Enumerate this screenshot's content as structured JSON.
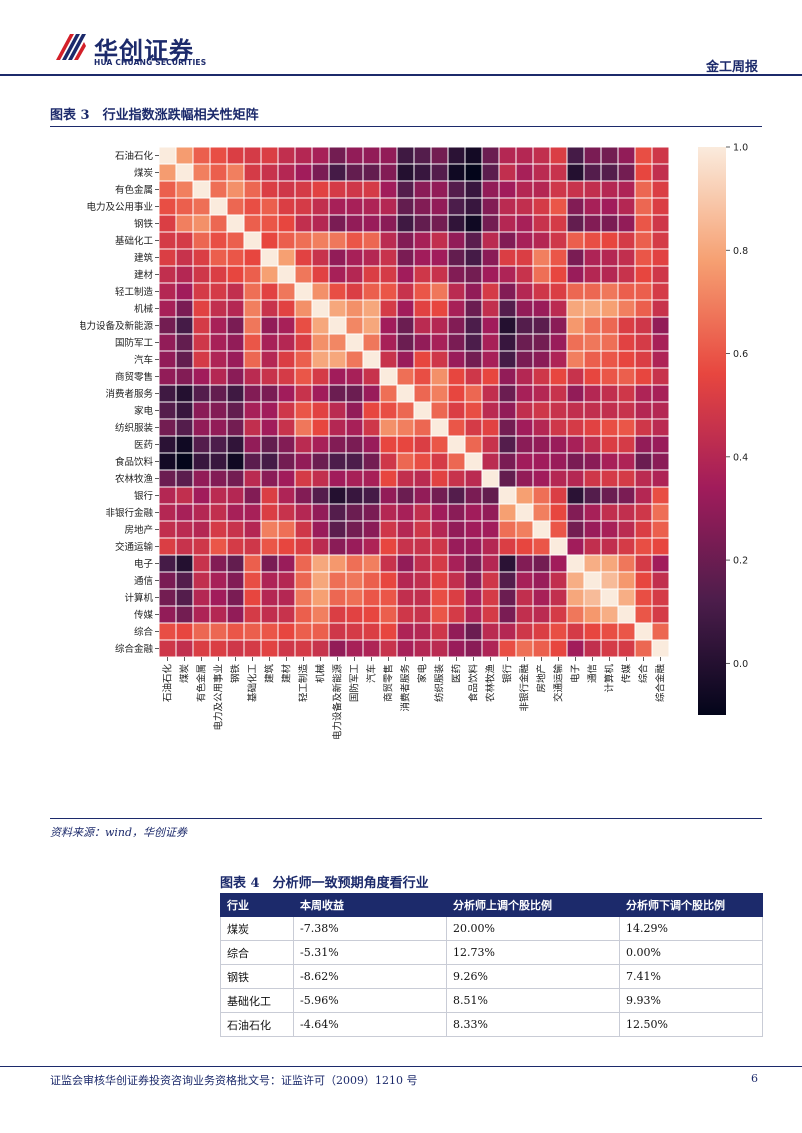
{
  "header": {
    "logo_cn": "华创证券",
    "logo_en": "HUA CHUANG SECURITIES",
    "report_type": "金工周报"
  },
  "figure3": {
    "title": "图表 3　行业指数涨跌幅相关性矩阵",
    "source": "资料来源：wind，华创证券"
  },
  "figure4": {
    "title": "图表 4　分析师一致预期角度看行业",
    "headers": [
      "行业",
      "本周收益",
      "分析师上调个股比例",
      "分析师下调个股比例"
    ],
    "rows": [
      [
        "煤炭",
        "-7.38%",
        "20.00%",
        "14.29%"
      ],
      [
        "综合",
        "-5.31%",
        "12.73%",
        "0.00%"
      ],
      [
        "钢铁",
        "-8.62%",
        "9.26%",
        "7.41%"
      ],
      [
        "基础化工",
        "-5.96%",
        "8.51%",
        "9.93%"
      ],
      [
        "石油石化",
        "-4.64%",
        "8.33%",
        "12.50%"
      ]
    ]
  },
  "footer": {
    "text": "证监会审核华创证券投资咨询业务资格批文号：证监许可（2009）1210 号",
    "page": "6"
  },
  "chart_data": {
    "type": "heatmap",
    "categories": [
      "石油石化",
      "煤炭",
      "有色金属",
      "电力及公用事业",
      "钢铁",
      "基础化工",
      "建筑",
      "建材",
      "轻工制造",
      "机械",
      "电力设备及新能源",
      "国防军工",
      "汽车",
      "商贸零售",
      "消费者服务",
      "家电",
      "纺织服装",
      "医药",
      "食品饮料",
      "农林牧渔",
      "银行",
      "非银行金融",
      "房地产",
      "交通运输",
      "电子",
      "通信",
      "计算机",
      "传媒",
      "综合",
      "综合金融"
    ],
    "colorbar": {
      "min": -0.1,
      "max": 1.0,
      "ticks": [
        1.0,
        0.8,
        0.6,
        0.4,
        0.2,
        0.0
      ],
      "tick_labels": [
        "1.0",
        "0.8",
        "0.6",
        "0.4",
        "0.2",
        "0.0"
      ]
    },
    "matrix": [
      [
        1.0,
        0.77,
        0.62,
        0.58,
        0.52,
        0.5,
        0.52,
        0.44,
        0.4,
        0.36,
        0.22,
        0.3,
        0.3,
        0.3,
        0.08,
        0.14,
        0.22,
        0.02,
        -0.05,
        0.2,
        0.4,
        0.4,
        0.44,
        0.52,
        0.1,
        0.24,
        0.22,
        0.3,
        0.58,
        0.48
      ],
      [
        0.77,
        1.0,
        0.7,
        0.62,
        0.7,
        0.5,
        0.46,
        0.4,
        0.34,
        0.24,
        0.1,
        0.18,
        0.18,
        0.26,
        0.0,
        0.06,
        0.14,
        -0.06,
        -0.1,
        0.16,
        0.44,
        0.36,
        0.42,
        0.46,
        0.0,
        0.14,
        0.14,
        0.22,
        0.56,
        0.44
      ],
      [
        0.62,
        0.7,
        1.0,
        0.66,
        0.74,
        0.64,
        0.52,
        0.48,
        0.5,
        0.54,
        0.5,
        0.48,
        0.5,
        0.34,
        0.14,
        0.28,
        0.3,
        0.14,
        0.06,
        0.3,
        0.34,
        0.4,
        0.4,
        0.48,
        0.46,
        0.44,
        0.4,
        0.38,
        0.64,
        0.52
      ],
      [
        0.58,
        0.62,
        0.66,
        1.0,
        0.64,
        0.58,
        0.62,
        0.52,
        0.5,
        0.44,
        0.36,
        0.36,
        0.38,
        0.4,
        0.18,
        0.26,
        0.3,
        0.12,
        0.06,
        0.26,
        0.42,
        0.44,
        0.5,
        0.6,
        0.26,
        0.36,
        0.34,
        0.4,
        0.64,
        0.52
      ],
      [
        0.52,
        0.7,
        0.74,
        0.64,
        1.0,
        0.62,
        0.6,
        0.56,
        0.44,
        0.4,
        0.24,
        0.3,
        0.32,
        0.28,
        0.08,
        0.18,
        0.22,
        0.04,
        -0.06,
        0.22,
        0.4,
        0.36,
        0.46,
        0.5,
        0.18,
        0.26,
        0.24,
        0.3,
        0.6,
        0.48
      ],
      [
        0.5,
        0.5,
        0.64,
        0.58,
        0.62,
        1.0,
        0.56,
        0.62,
        0.66,
        0.7,
        0.68,
        0.6,
        0.64,
        0.42,
        0.26,
        0.36,
        0.44,
        0.3,
        0.16,
        0.42,
        0.26,
        0.36,
        0.4,
        0.48,
        0.62,
        0.58,
        0.56,
        0.5,
        0.62,
        0.5
      ],
      [
        0.52,
        0.46,
        0.52,
        0.62,
        0.6,
        0.56,
        1.0,
        0.78,
        0.54,
        0.46,
        0.3,
        0.36,
        0.4,
        0.46,
        0.24,
        0.34,
        0.34,
        0.18,
        0.1,
        0.28,
        0.52,
        0.52,
        0.7,
        0.6,
        0.24,
        0.38,
        0.4,
        0.44,
        0.6,
        0.54
      ],
      [
        0.44,
        0.4,
        0.48,
        0.52,
        0.56,
        0.62,
        0.78,
        1.0,
        0.68,
        0.54,
        0.36,
        0.4,
        0.52,
        0.5,
        0.34,
        0.48,
        0.46,
        0.26,
        0.22,
        0.34,
        0.38,
        0.46,
        0.66,
        0.56,
        0.32,
        0.4,
        0.4,
        0.46,
        0.56,
        0.48
      ],
      [
        0.4,
        0.34,
        0.5,
        0.5,
        0.44,
        0.66,
        0.54,
        0.68,
        1.0,
        0.74,
        0.58,
        0.52,
        0.62,
        0.6,
        0.46,
        0.6,
        0.68,
        0.42,
        0.3,
        0.5,
        0.26,
        0.4,
        0.48,
        0.52,
        0.64,
        0.64,
        0.68,
        0.62,
        0.62,
        0.5
      ],
      [
        0.36,
        0.24,
        0.54,
        0.44,
        0.4,
        0.7,
        0.46,
        0.54,
        0.74,
        1.0,
        0.8,
        0.74,
        0.8,
        0.5,
        0.34,
        0.54,
        0.56,
        0.36,
        0.2,
        0.44,
        0.14,
        0.3,
        0.32,
        0.42,
        0.8,
        0.8,
        0.78,
        0.7,
        0.62,
        0.46
      ],
      [
        0.22,
        0.1,
        0.5,
        0.36,
        0.24,
        0.68,
        0.3,
        0.36,
        0.58,
        0.8,
        1.0,
        0.72,
        0.8,
        0.34,
        0.2,
        0.42,
        0.4,
        0.26,
        0.12,
        0.34,
        0.0,
        0.14,
        0.16,
        0.28,
        0.76,
        0.66,
        0.64,
        0.52,
        0.48,
        0.3
      ],
      [
        0.3,
        0.18,
        0.48,
        0.36,
        0.3,
        0.6,
        0.36,
        0.4,
        0.52,
        0.74,
        0.72,
        1.0,
        0.68,
        0.36,
        0.2,
        0.3,
        0.36,
        0.24,
        0.12,
        0.36,
        0.06,
        0.2,
        0.22,
        0.32,
        0.66,
        0.68,
        0.66,
        0.54,
        0.5,
        0.36
      ],
      [
        0.3,
        0.18,
        0.5,
        0.38,
        0.32,
        0.64,
        0.4,
        0.52,
        0.62,
        0.8,
        0.8,
        0.68,
        1.0,
        0.46,
        0.32,
        0.56,
        0.48,
        0.32,
        0.22,
        0.36,
        0.1,
        0.24,
        0.28,
        0.38,
        0.7,
        0.62,
        0.6,
        0.56,
        0.52,
        0.38
      ],
      [
        0.3,
        0.26,
        0.34,
        0.4,
        0.28,
        0.42,
        0.46,
        0.5,
        0.6,
        0.5,
        0.34,
        0.36,
        0.46,
        1.0,
        0.66,
        0.58,
        0.74,
        0.56,
        0.48,
        0.56,
        0.3,
        0.4,
        0.48,
        0.56,
        0.46,
        0.56,
        0.6,
        0.62,
        0.56,
        0.46
      ],
      [
        0.08,
        0.0,
        0.14,
        0.18,
        0.08,
        0.26,
        0.24,
        0.34,
        0.46,
        0.34,
        0.2,
        0.2,
        0.32,
        0.66,
        1.0,
        0.64,
        0.7,
        0.56,
        0.64,
        0.44,
        0.2,
        0.36,
        0.4,
        0.46,
        0.3,
        0.4,
        0.44,
        0.48,
        0.38,
        0.36
      ],
      [
        0.14,
        0.06,
        0.28,
        0.26,
        0.18,
        0.36,
        0.34,
        0.48,
        0.6,
        0.54,
        0.42,
        0.3,
        0.56,
        0.58,
        0.64,
        1.0,
        0.64,
        0.52,
        0.58,
        0.42,
        0.3,
        0.44,
        0.48,
        0.46,
        0.44,
        0.44,
        0.44,
        0.46,
        0.4,
        0.4
      ],
      [
        0.22,
        0.14,
        0.3,
        0.3,
        0.22,
        0.44,
        0.34,
        0.46,
        0.68,
        0.56,
        0.4,
        0.36,
        0.48,
        0.74,
        0.7,
        0.64,
        1.0,
        0.6,
        0.5,
        0.54,
        0.22,
        0.34,
        0.4,
        0.48,
        0.5,
        0.54,
        0.58,
        0.6,
        0.48,
        0.42
      ],
      [
        0.02,
        -0.06,
        0.14,
        0.12,
        0.04,
        0.3,
        0.18,
        0.26,
        0.42,
        0.36,
        0.26,
        0.24,
        0.32,
        0.56,
        0.56,
        0.52,
        0.6,
        1.0,
        0.64,
        0.46,
        0.14,
        0.28,
        0.3,
        0.32,
        0.36,
        0.44,
        0.52,
        0.5,
        0.3,
        0.32
      ],
      [
        -0.05,
        -0.1,
        0.06,
        0.06,
        -0.06,
        0.16,
        0.1,
        0.22,
        0.3,
        0.2,
        0.12,
        0.12,
        0.22,
        0.48,
        0.64,
        0.58,
        0.5,
        0.64,
        1.0,
        0.42,
        0.24,
        0.34,
        0.34,
        0.32,
        0.24,
        0.28,
        0.36,
        0.38,
        0.2,
        0.28
      ],
      [
        0.2,
        0.16,
        0.3,
        0.26,
        0.22,
        0.42,
        0.28,
        0.34,
        0.5,
        0.44,
        0.34,
        0.36,
        0.36,
        0.56,
        0.44,
        0.42,
        0.54,
        0.46,
        0.42,
        1.0,
        0.18,
        0.3,
        0.34,
        0.4,
        0.4,
        0.48,
        0.5,
        0.5,
        0.42,
        0.38
      ],
      [
        0.4,
        0.44,
        0.34,
        0.42,
        0.4,
        0.26,
        0.52,
        0.38,
        0.26,
        0.14,
        0.0,
        0.06,
        0.1,
        0.3,
        0.2,
        0.3,
        0.22,
        0.14,
        0.24,
        0.18,
        1.0,
        0.78,
        0.66,
        0.52,
        0.02,
        0.14,
        0.2,
        0.24,
        0.4,
        0.58
      ],
      [
        0.4,
        0.36,
        0.4,
        0.44,
        0.36,
        0.36,
        0.52,
        0.46,
        0.4,
        0.3,
        0.14,
        0.2,
        0.24,
        0.4,
        0.36,
        0.44,
        0.34,
        0.28,
        0.34,
        0.3,
        0.78,
        1.0,
        0.7,
        0.56,
        0.26,
        0.36,
        0.44,
        0.44,
        0.48,
        0.66
      ],
      [
        0.44,
        0.42,
        0.4,
        0.5,
        0.46,
        0.4,
        0.7,
        0.66,
        0.48,
        0.32,
        0.16,
        0.22,
        0.28,
        0.48,
        0.4,
        0.48,
        0.4,
        0.3,
        0.34,
        0.34,
        0.66,
        0.7,
        1.0,
        0.6,
        0.22,
        0.32,
        0.36,
        0.42,
        0.52,
        0.62
      ],
      [
        0.52,
        0.46,
        0.48,
        0.6,
        0.5,
        0.48,
        0.6,
        0.56,
        0.52,
        0.42,
        0.28,
        0.32,
        0.38,
        0.56,
        0.46,
        0.46,
        0.48,
        0.32,
        0.32,
        0.4,
        0.52,
        0.56,
        0.6,
        1.0,
        0.34,
        0.44,
        0.44,
        0.5,
        0.58,
        0.56
      ],
      [
        0.1,
        0.0,
        0.46,
        0.26,
        0.18,
        0.62,
        0.24,
        0.32,
        0.64,
        0.8,
        0.76,
        0.66,
        0.7,
        0.46,
        0.3,
        0.44,
        0.5,
        0.36,
        0.24,
        0.4,
        0.02,
        0.26,
        0.22,
        0.34,
        1.0,
        0.82,
        0.8,
        0.68,
        0.5,
        0.34
      ],
      [
        0.24,
        0.14,
        0.44,
        0.36,
        0.26,
        0.58,
        0.38,
        0.4,
        0.64,
        0.8,
        0.66,
        0.68,
        0.62,
        0.56,
        0.4,
        0.44,
        0.54,
        0.44,
        0.28,
        0.48,
        0.14,
        0.36,
        0.32,
        0.44,
        0.82,
        1.0,
        0.86,
        0.76,
        0.56,
        0.44
      ],
      [
        0.22,
        0.14,
        0.4,
        0.34,
        0.24,
        0.56,
        0.4,
        0.4,
        0.68,
        0.78,
        0.64,
        0.66,
        0.6,
        0.6,
        0.44,
        0.44,
        0.58,
        0.52,
        0.36,
        0.5,
        0.2,
        0.44,
        0.36,
        0.44,
        0.8,
        0.86,
        1.0,
        0.82,
        0.58,
        0.5
      ],
      [
        0.3,
        0.22,
        0.38,
        0.4,
        0.3,
        0.5,
        0.44,
        0.46,
        0.62,
        0.7,
        0.52,
        0.54,
        0.56,
        0.62,
        0.48,
        0.46,
        0.6,
        0.5,
        0.38,
        0.5,
        0.24,
        0.44,
        0.42,
        0.5,
        0.68,
        0.76,
        0.82,
        1.0,
        0.6,
        0.5
      ],
      [
        0.58,
        0.56,
        0.64,
        0.64,
        0.6,
        0.62,
        0.6,
        0.56,
        0.62,
        0.62,
        0.48,
        0.5,
        0.52,
        0.56,
        0.38,
        0.4,
        0.48,
        0.3,
        0.2,
        0.42,
        0.4,
        0.48,
        0.52,
        0.58,
        0.5,
        0.56,
        0.58,
        0.6,
        1.0,
        0.64
      ],
      [
        0.48,
        0.44,
        0.52,
        0.52,
        0.48,
        0.5,
        0.54,
        0.48,
        0.5,
        0.46,
        0.3,
        0.36,
        0.38,
        0.46,
        0.36,
        0.4,
        0.42,
        0.32,
        0.28,
        0.38,
        0.58,
        0.66,
        0.62,
        0.56,
        0.34,
        0.44,
        0.5,
        0.5,
        0.64,
        1.0
      ]
    ]
  }
}
